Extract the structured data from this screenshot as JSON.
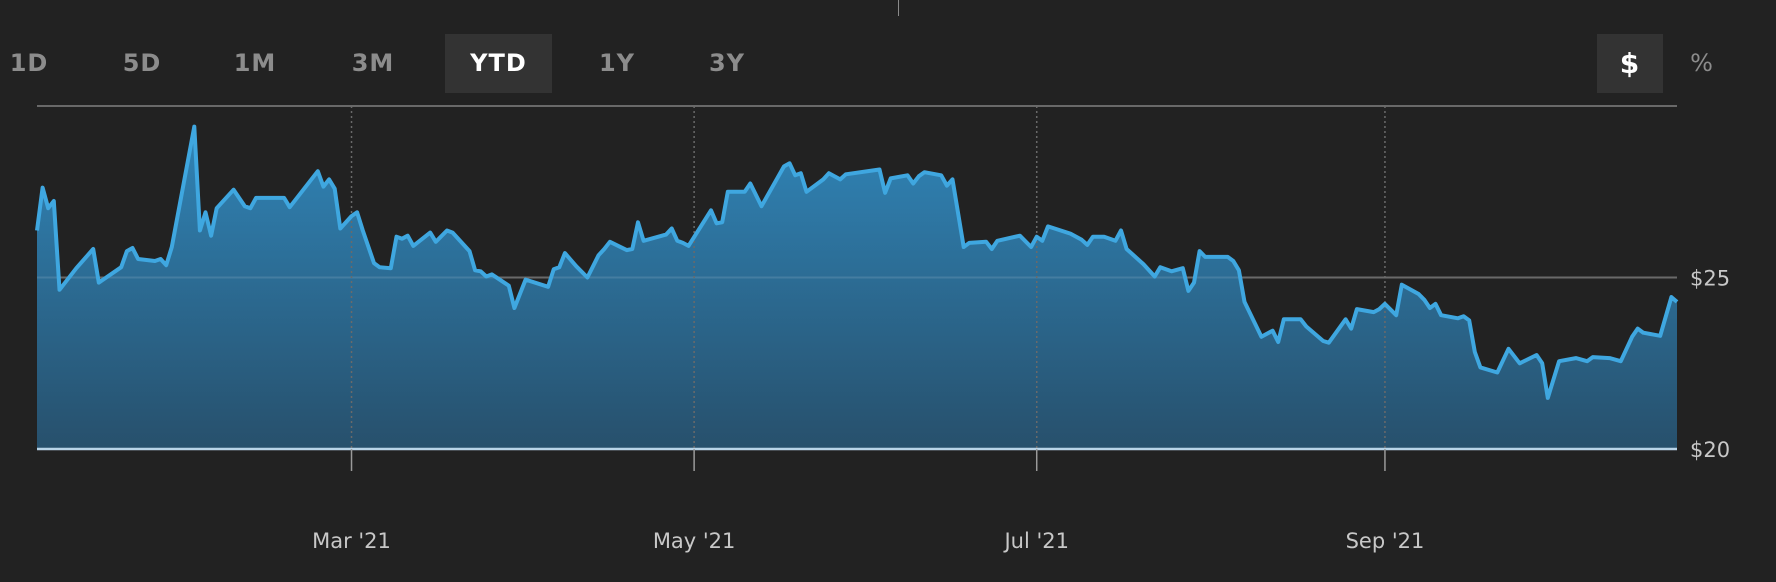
{
  "range_tabs": [
    {
      "label": "1D",
      "active": false
    },
    {
      "label": "5D",
      "active": false
    },
    {
      "label": "1M",
      "active": false
    },
    {
      "label": "3M",
      "active": false
    },
    {
      "label": "YTD",
      "active": true
    },
    {
      "label": "1Y",
      "active": false
    },
    {
      "label": "3Y",
      "active": false
    }
  ],
  "unit_toggle": [
    {
      "label": "$",
      "active": true
    },
    {
      "label": "%",
      "active": false
    }
  ],
  "colors": {
    "background": "#222222",
    "line": "#3fa7e0",
    "fill_top": "#3085b8",
    "fill_bottom": "#27506c",
    "baseline": "#b8d4e8",
    "grid": "#555555"
  },
  "chart_data": {
    "type": "area",
    "x_range": [
      "2021-01-04",
      "2021-10-23"
    ],
    "ylim": [
      20,
      30
    ],
    "y_gridlines": [
      20,
      25,
      30
    ],
    "y_tick_labels": [
      {
        "value": 20,
        "label": "$20"
      },
      {
        "value": 25,
        "label": "$25"
      }
    ],
    "x_ticks": [
      {
        "date": "2021-03-01",
        "label": "Mar '21"
      },
      {
        "date": "2021-05-01",
        "label": "May '21"
      },
      {
        "date": "2021-07-01",
        "label": "Jul '21"
      },
      {
        "date": "2021-09-01",
        "label": "Sep '21"
      }
    ],
    "grid": true,
    "points": [
      [
        "2021-01-04",
        26.37
      ],
      [
        "2021-01-05",
        27.62
      ],
      [
        "2021-01-06",
        27.02
      ],
      [
        "2021-01-07",
        27.23
      ],
      [
        "2021-01-08",
        24.64
      ],
      [
        "2021-01-11",
        25.27
      ],
      [
        "2021-01-14",
        25.83
      ],
      [
        "2021-01-15",
        24.85
      ],
      [
        "2021-01-19",
        25.3
      ],
      [
        "2021-01-20",
        25.77
      ],
      [
        "2021-01-21",
        25.86
      ],
      [
        "2021-01-22",
        25.54
      ],
      [
        "2021-01-25",
        25.48
      ],
      [
        "2021-01-26",
        25.54
      ],
      [
        "2021-01-27",
        25.36
      ],
      [
        "2021-01-28",
        25.89
      ],
      [
        "2021-02-01",
        29.4
      ],
      [
        "2021-02-02",
        26.37
      ],
      [
        "2021-02-03",
        26.9
      ],
      [
        "2021-02-04",
        26.22
      ],
      [
        "2021-02-05",
        27.02
      ],
      [
        "2021-02-08",
        27.56
      ],
      [
        "2021-02-10",
        27.08
      ],
      [
        "2021-02-11",
        27.02
      ],
      [
        "2021-02-12",
        27.32
      ],
      [
        "2021-02-17",
        27.32
      ],
      [
        "2021-02-18",
        27.05
      ],
      [
        "2021-02-23",
        28.1
      ],
      [
        "2021-02-24",
        27.65
      ],
      [
        "2021-02-25",
        27.86
      ],
      [
        "2021-02-26",
        27.59
      ],
      [
        "2021-02-27",
        26.43
      ],
      [
        "2021-03-01",
        26.79
      ],
      [
        "2021-03-02",
        26.9
      ],
      [
        "2021-03-03",
        26.37
      ],
      [
        "2021-03-05",
        25.42
      ],
      [
        "2021-03-06",
        25.3
      ],
      [
        "2021-03-08",
        25.27
      ],
      [
        "2021-03-09",
        26.19
      ],
      [
        "2021-03-10",
        26.13
      ],
      [
        "2021-03-11",
        26.22
      ],
      [
        "2021-03-12",
        25.92
      ],
      [
        "2021-03-15",
        26.31
      ],
      [
        "2021-03-16",
        26.04
      ],
      [
        "2021-03-18",
        26.37
      ],
      [
        "2021-03-19",
        26.31
      ],
      [
        "2021-03-22",
        25.77
      ],
      [
        "2021-03-23",
        25.21
      ],
      [
        "2021-03-24",
        25.18
      ],
      [
        "2021-03-25",
        25.03
      ],
      [
        "2021-03-26",
        25.09
      ],
      [
        "2021-03-29",
        24.76
      ],
      [
        "2021-03-30",
        24.11
      ],
      [
        "2021-04-01",
        24.94
      ],
      [
        "2021-04-05",
        24.73
      ],
      [
        "2021-04-06",
        25.24
      ],
      [
        "2021-04-07",
        25.3
      ],
      [
        "2021-04-08",
        25.71
      ],
      [
        "2021-04-10",
        25.33
      ],
      [
        "2021-04-12",
        25.0
      ],
      [
        "2021-04-14",
        25.65
      ],
      [
        "2021-04-15",
        25.83
      ],
      [
        "2021-04-16",
        26.04
      ],
      [
        "2021-04-19",
        25.8
      ],
      [
        "2021-04-20",
        25.83
      ],
      [
        "2021-04-21",
        26.61
      ],
      [
        "2021-04-22",
        26.07
      ],
      [
        "2021-04-26",
        26.25
      ],
      [
        "2021-04-27",
        26.43
      ],
      [
        "2021-04-28",
        26.07
      ],
      [
        "2021-04-29",
        26.01
      ],
      [
        "2021-04-30",
        25.92
      ],
      [
        "2021-05-04",
        26.96
      ],
      [
        "2021-05-05",
        26.58
      ],
      [
        "2021-05-06",
        26.61
      ],
      [
        "2021-05-07",
        27.5
      ],
      [
        "2021-05-10",
        27.5
      ],
      [
        "2021-05-11",
        27.74
      ],
      [
        "2021-05-13",
        27.08
      ],
      [
        "2021-05-17",
        28.24
      ],
      [
        "2021-05-18",
        28.33
      ],
      [
        "2021-05-19",
        27.98
      ],
      [
        "2021-05-20",
        28.04
      ],
      [
        "2021-05-21",
        27.5
      ],
      [
        "2021-05-24",
        27.86
      ],
      [
        "2021-05-25",
        28.04
      ],
      [
        "2021-05-27",
        27.86
      ],
      [
        "2021-05-28",
        28.01
      ],
      [
        "2021-06-03",
        28.15
      ],
      [
        "2021-06-04",
        27.47
      ],
      [
        "2021-06-05",
        27.89
      ],
      [
        "2021-06-08",
        27.98
      ],
      [
        "2021-06-09",
        27.74
      ],
      [
        "2021-06-10",
        27.95
      ],
      [
        "2021-06-11",
        28.07
      ],
      [
        "2021-06-14",
        27.98
      ],
      [
        "2021-06-15",
        27.68
      ],
      [
        "2021-06-16",
        27.86
      ],
      [
        "2021-06-18",
        25.89
      ],
      [
        "2021-06-19",
        26.01
      ],
      [
        "2021-06-22",
        26.04
      ],
      [
        "2021-06-23",
        25.83
      ],
      [
        "2021-06-24",
        26.07
      ],
      [
        "2021-06-28",
        26.22
      ],
      [
        "2021-06-30",
        25.89
      ],
      [
        "2021-07-01",
        26.19
      ],
      [
        "2021-07-02",
        26.07
      ],
      [
        "2021-07-03",
        26.49
      ],
      [
        "2021-07-07",
        26.28
      ],
      [
        "2021-07-09",
        26.1
      ],
      [
        "2021-07-10",
        25.95
      ],
      [
        "2021-07-11",
        26.19
      ],
      [
        "2021-07-13",
        26.19
      ],
      [
        "2021-07-15",
        26.07
      ],
      [
        "2021-07-16",
        26.37
      ],
      [
        "2021-07-17",
        25.83
      ],
      [
        "2021-07-20",
        25.39
      ],
      [
        "2021-07-22",
        25.03
      ],
      [
        "2021-07-23",
        25.3
      ],
      [
        "2021-07-25",
        25.18
      ],
      [
        "2021-07-27",
        25.27
      ],
      [
        "2021-07-28",
        24.61
      ],
      [
        "2021-07-29",
        24.85
      ],
      [
        "2021-07-30",
        25.77
      ],
      [
        "2021-07-31",
        25.6
      ],
      [
        "2021-08-04",
        25.6
      ],
      [
        "2021-08-05",
        25.48
      ],
      [
        "2021-08-06",
        25.21
      ],
      [
        "2021-08-07",
        24.29
      ],
      [
        "2021-08-10",
        23.27
      ],
      [
        "2021-08-12",
        23.45
      ],
      [
        "2021-08-13",
        23.12
      ],
      [
        "2021-08-14",
        23.78
      ],
      [
        "2021-08-17",
        23.78
      ],
      [
        "2021-08-18",
        23.57
      ],
      [
        "2021-08-21",
        23.15
      ],
      [
        "2021-08-22",
        23.1
      ],
      [
        "2021-08-25",
        23.78
      ],
      [
        "2021-08-26",
        23.51
      ],
      [
        "2021-08-27",
        24.08
      ],
      [
        "2021-08-30",
        23.99
      ],
      [
        "2021-08-31",
        24.08
      ],
      [
        "2021-09-01",
        24.23
      ],
      [
        "2021-09-03",
        23.9
      ],
      [
        "2021-09-04",
        24.79
      ],
      [
        "2021-09-07",
        24.52
      ],
      [
        "2021-09-08",
        24.35
      ],
      [
        "2021-09-09",
        24.11
      ],
      [
        "2021-09-10",
        24.23
      ],
      [
        "2021-09-11",
        23.9
      ],
      [
        "2021-09-14",
        23.81
      ],
      [
        "2021-09-15",
        23.87
      ],
      [
        "2021-09-16",
        23.75
      ],
      [
        "2021-09-17",
        22.83
      ],
      [
        "2021-09-18",
        22.38
      ],
      [
        "2021-09-21",
        22.23
      ],
      [
        "2021-09-23",
        22.92
      ],
      [
        "2021-09-25",
        22.5
      ],
      [
        "2021-09-28",
        22.74
      ],
      [
        "2021-09-29",
        22.5
      ],
      [
        "2021-09-30",
        21.49
      ],
      [
        "2021-10-02",
        22.56
      ],
      [
        "2021-10-05",
        22.65
      ],
      [
        "2021-10-07",
        22.56
      ],
      [
        "2021-10-08",
        22.68
      ],
      [
        "2021-10-11",
        22.65
      ],
      [
        "2021-10-13",
        22.56
      ],
      [
        "2021-10-15",
        23.27
      ],
      [
        "2021-10-16",
        23.51
      ],
      [
        "2021-10-17",
        23.39
      ],
      [
        "2021-10-20",
        23.3
      ],
      [
        "2021-10-22",
        24.43
      ],
      [
        "2021-10-23",
        24.29
      ]
    ]
  }
}
